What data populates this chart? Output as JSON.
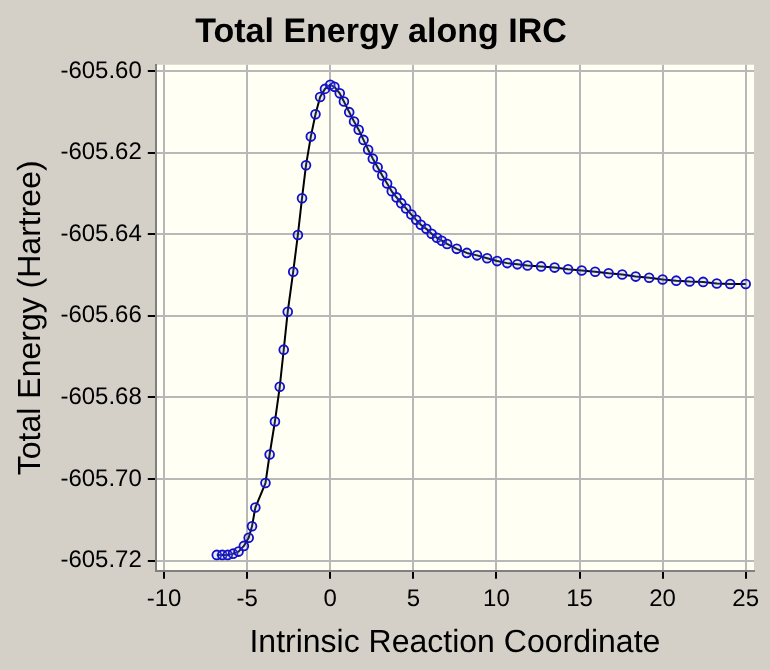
{
  "chart_data": {
    "type": "line",
    "title": "Total Energy along IRC",
    "xlabel": "Intrinsic Reaction Coordinate",
    "ylabel": "Total Energy (Hartree)",
    "xlim": [
      -10.5,
      25.5
    ],
    "xticks": [
      -10,
      -5,
      0,
      5,
      10,
      15,
      20,
      25
    ],
    "ylim": [
      -605.7225,
      -605.5985
    ],
    "yticks": [
      -605.72,
      {
        "value": -605.7,
        "label": "-605.70"
      },
      -605.68,
      -605.66,
      -605.64,
      -605.62,
      {
        "value": -605.6,
        "label": "-605.60"
      }
    ],
    "grid": true,
    "marker": "circle",
    "line_style": "solid",
    "series": [
      {
        "color": "#1010c8",
        "x": [
          -6.83,
          -6.5,
          -6.17,
          -5.85,
          -5.52,
          -5.2,
          -4.91,
          -4.71,
          -4.51,
          -3.9,
          -3.65,
          -3.33,
          -3.04,
          -2.8,
          -2.56,
          -2.23,
          -1.95,
          -1.7,
          -1.46,
          -1.17,
          -0.89,
          -0.61,
          -0.32,
          0,
          0.25,
          0.57,
          0.82,
          1.14,
          1.43,
          1.71,
          2,
          2.28,
          2.56,
          2.85,
          3.13,
          3.42,
          3.7,
          3.99,
          4.27,
          4.56,
          4.88,
          5.17,
          5.45,
          5.78,
          6.1,
          6.42,
          6.71,
          7.03,
          7.61,
          8.22,
          8.83,
          9.44,
          10.04,
          10.65,
          11.26,
          11.87,
          12.69,
          13.5,
          14.31,
          15.13,
          15.94,
          16.75,
          17.57,
          18.38,
          19.19,
          20,
          20.82,
          21.63,
          22.44,
          23.26,
          24.07,
          25
        ],
        "values": [
          -605.7186,
          -605.7186,
          -605.7186,
          -605.7183,
          -605.7178,
          -605.7164,
          -605.7144,
          -605.7116,
          -605.707,
          -605.701,
          -605.694,
          -605.6859,
          -605.6774,
          -605.6683,
          -605.659,
          -605.6492,
          -605.6402,
          -605.6312,
          -605.6231,
          -605.6161,
          -605.6106,
          -605.6064,
          -605.6044,
          -605.6034,
          -605.6039,
          -605.6055,
          -605.6075,
          -605.6101,
          -605.6124,
          -605.6144,
          -605.6169,
          -605.6193,
          -605.6215,
          -605.6236,
          -605.6256,
          -605.6276,
          -605.6295,
          -605.631,
          -605.6324,
          -605.6337,
          -605.6352,
          -605.6365,
          -605.6377,
          -605.6387,
          -605.6399,
          -605.6409,
          -605.6416,
          -605.6424,
          -605.6436,
          -605.6446,
          -605.6452,
          -605.6459,
          -605.6466,
          -605.6471,
          -605.6474,
          -605.6477,
          -605.6479,
          -605.6482,
          -605.6486,
          -605.6489,
          -605.6492,
          -605.6496,
          -605.6499,
          -605.6504,
          -605.6507,
          -605.6511,
          -605.6514,
          -605.6516,
          -605.6517,
          -605.6521,
          -605.6522,
          -605.6522
        ]
      }
    ]
  }
}
